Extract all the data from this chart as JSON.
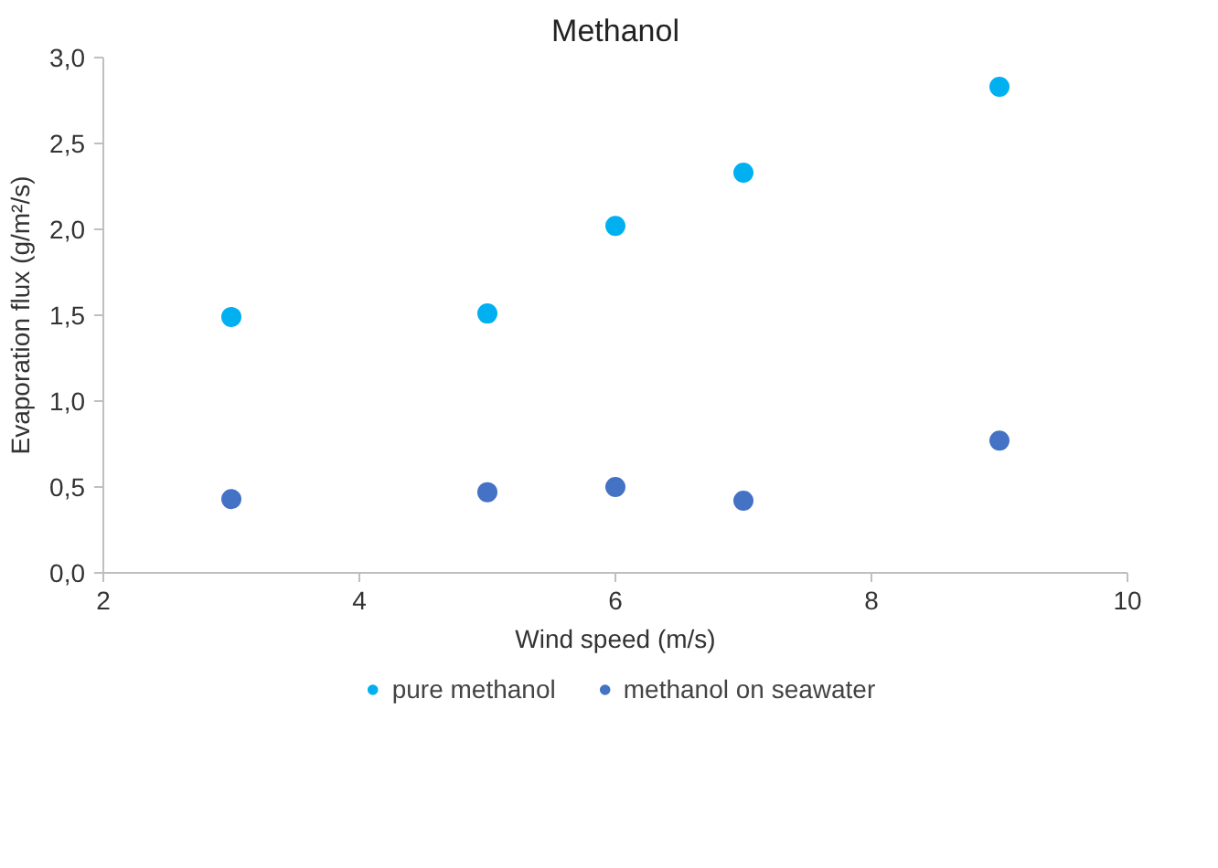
{
  "chart_data": {
    "type": "scatter",
    "title": "Methanol",
    "xlabel": "Wind speed (m/s)",
    "ylabel": "Evaporation flux (g/m²/s)",
    "x": [
      3,
      5,
      6,
      7,
      9
    ],
    "series": [
      {
        "name": "pure methanol",
        "color": "#00b0f0",
        "values": [
          1.49,
          1.51,
          2.02,
          2.33,
          2.83
        ]
      },
      {
        "name": "methanol on seawater",
        "color": "#4472c4",
        "values": [
          0.43,
          0.47,
          0.5,
          0.42,
          0.77
        ]
      }
    ],
    "xlim": [
      2,
      10
    ],
    "xticks": [
      2,
      4,
      6,
      8,
      10
    ],
    "ylim": [
      0,
      3
    ],
    "yticks": [
      {
        "value": 0,
        "label": "0,0"
      },
      {
        "value": 0.5,
        "label": "0,5"
      },
      {
        "value": 1,
        "label": "1,0"
      },
      {
        "value": 1.5,
        "label": "1,5"
      },
      {
        "value": 2,
        "label": "2,0"
      },
      {
        "value": 2.5,
        "label": "2,5"
      },
      {
        "value": 3,
        "label": "3,0"
      }
    ],
    "grid": false,
    "legend": "bottom",
    "marker": "circle"
  }
}
